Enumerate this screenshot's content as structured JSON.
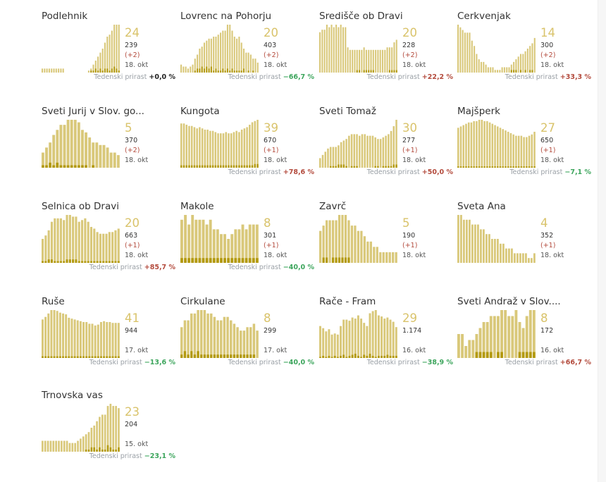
{
  "colors": {
    "bar": "#d9c87a",
    "bar_dark": "#b39a11",
    "growth_neg": "#3ca55c",
    "growth_pos": "#b34a3c"
  },
  "growth_label": "Tedenski prirast",
  "chart_data": [
    {
      "type": "bar",
      "name": "Podlehnik",
      "active": "24",
      "total": "239",
      "delta": "(+2)",
      "date": "18. okt",
      "growth": "+0,0 %",
      "growth_sign": "zero",
      "values": [
        2,
        2,
        2,
        2,
        2,
        2,
        2,
        2,
        2,
        2,
        0,
        0,
        0,
        0,
        0,
        0,
        0,
        0,
        0,
        0,
        1,
        2,
        4,
        6,
        8,
        10,
        12,
        15,
        18,
        19,
        21,
        24,
        24,
        24
      ],
      "dark": [
        0,
        0,
        0,
        0,
        0,
        0,
        0,
        0,
        0,
        0,
        0,
        0,
        0,
        0,
        0,
        0,
        0,
        0,
        0,
        0,
        0,
        1,
        1,
        2,
        1,
        2,
        1,
        2,
        2,
        1,
        2,
        3,
        2,
        1
      ]
    },
    {
      "type": "bar",
      "name": "Lovrenc na Pohorju",
      "active": "20",
      "total": "403",
      "delta": "(+2)",
      "date": "18. okt",
      "growth": "−66,7 %",
      "growth_sign": "neg",
      "values": [
        4,
        3,
        3,
        2,
        3,
        4,
        7,
        9,
        12,
        13,
        15,
        16,
        17,
        17,
        18,
        18,
        19,
        20,
        21,
        21,
        24,
        24,
        21,
        18,
        17,
        18,
        15,
        12,
        10,
        10,
        9,
        7,
        7,
        5
      ],
      "dark": [
        0,
        0,
        0,
        0,
        0,
        0,
        1,
        2,
        2,
        3,
        2,
        3,
        2,
        3,
        1,
        2,
        1,
        1,
        2,
        1,
        2,
        1,
        2,
        1,
        1,
        1,
        1,
        2,
        0,
        1,
        0,
        1,
        0,
        0
      ]
    },
    {
      "type": "bar",
      "name": "Središče ob Dravi",
      "active": "20",
      "total": "228",
      "delta": "(+2)",
      "date": "18. okt",
      "growth": "+22,2 %",
      "growth_sign": "pos",
      "values": [
        16,
        17,
        17,
        19,
        18,
        19,
        18,
        19,
        18,
        19,
        18,
        18,
        10,
        9,
        9,
        9,
        9,
        9,
        9,
        10,
        9,
        9,
        9,
        9,
        9,
        9,
        9,
        9,
        9,
        10,
        10,
        10,
        12,
        13
      ],
      "dark": [
        0,
        0,
        0,
        0,
        0,
        0,
        0,
        0,
        0,
        0,
        0,
        0,
        0,
        0,
        0,
        0,
        1,
        1,
        0,
        1,
        1,
        1,
        1,
        1,
        0,
        0,
        0,
        0,
        0,
        0,
        1,
        1,
        1,
        1
      ]
    },
    {
      "type": "bar",
      "name": "Cerkvenjak",
      "active": "14",
      "total": "300",
      "delta": "(+2)",
      "date": "18. okt",
      "growth": "+33,3 %",
      "growth_sign": "pos",
      "values": [
        18,
        17,
        16,
        15,
        15,
        15,
        12,
        10,
        7,
        5,
        4,
        4,
        3,
        2,
        2,
        2,
        1,
        1,
        1,
        2,
        2,
        2,
        2,
        3,
        4,
        5,
        6,
        7,
        7,
        8,
        9,
        10,
        11,
        13
      ],
      "dark": [
        0,
        0,
        0,
        0,
        0,
        0,
        0,
        0,
        0,
        0,
        0,
        0,
        0,
        0,
        0,
        0,
        0,
        0,
        0,
        0,
        0,
        0,
        0,
        1,
        1,
        1,
        0,
        1,
        0,
        1,
        0,
        1,
        1,
        0
      ]
    },
    {
      "type": "bar",
      "name": "Sveti Jurij v Slov. go...",
      "active": "5",
      "total": "370",
      "delta": "(+2)",
      "date": "18. okt",
      "growth": "",
      "growth_sign": "none",
      "values": [
        6,
        8,
        10,
        13,
        15,
        17,
        17,
        19,
        19,
        19,
        18,
        15,
        14,
        12,
        10,
        10,
        9,
        9,
        8,
        6,
        6,
        5
      ],
      "dark": [
        1,
        1,
        2,
        1,
        2,
        1,
        1,
        1,
        1,
        1,
        1,
        1,
        1,
        0,
        1,
        0,
        0,
        0,
        0,
        0,
        0,
        0
      ]
    },
    {
      "type": "bar",
      "name": "Kungota",
      "active": "39",
      "total": "670",
      "delta": "(+1)",
      "date": "18. okt",
      "growth": "+78,6 %",
      "growth_sign": "pos",
      "values": [
        36,
        36,
        35,
        34,
        34,
        33,
        32,
        33,
        32,
        31,
        31,
        30,
        30,
        29,
        28,
        28,
        28,
        29,
        28,
        28,
        29,
        30,
        29,
        31,
        32,
        33,
        35,
        37,
        38,
        39
      ],
      "dark": [
        2,
        2,
        2,
        2,
        2,
        2,
        2,
        2,
        2,
        2,
        2,
        2,
        2,
        2,
        2,
        2,
        2,
        2,
        2,
        2,
        2,
        2,
        2,
        2,
        2,
        2,
        2,
        2,
        3,
        3
      ]
    },
    {
      "type": "bar",
      "name": "Sveti Tomaž",
      "active": "30",
      "total": "277",
      "delta": "(+1)",
      "date": "18. okt",
      "growth": "+50,0 %",
      "growth_sign": "pos",
      "values": [
        6,
        8,
        10,
        12,
        13,
        13,
        13,
        14,
        16,
        17,
        18,
        20,
        21,
        21,
        21,
        20,
        21,
        21,
        20,
        20,
        20,
        19,
        18,
        18,
        19,
        20,
        21,
        23,
        26,
        30
      ],
      "dark": [
        0,
        0,
        0,
        0,
        1,
        1,
        1,
        2,
        2,
        2,
        1,
        0,
        1,
        1,
        1,
        0,
        0,
        0,
        0,
        0,
        0,
        1,
        1,
        0,
        1,
        1,
        1,
        1,
        2,
        2
      ]
    },
    {
      "type": "bar",
      "name": "Majšperk",
      "active": "27",
      "total": "650",
      "delta": "(+1)",
      "date": "18. okt",
      "growth": "−7,1 %",
      "growth_sign": "neg",
      "values": [
        30,
        31,
        32,
        33,
        34,
        34,
        35,
        35,
        36,
        36,
        35,
        35,
        34,
        33,
        32,
        31,
        30,
        29,
        28,
        27,
        26,
        25,
        24,
        24,
        24,
        23,
        23,
        24,
        25,
        27
      ],
      "dark": [
        1,
        1,
        1,
        1,
        1,
        1,
        1,
        1,
        1,
        1,
        1,
        1,
        1,
        1,
        1,
        1,
        1,
        1,
        1,
        1,
        1,
        1,
        1,
        1,
        1,
        1,
        1,
        1,
        1,
        1
      ]
    },
    {
      "type": "bar",
      "name": "Selnica ob Dravi",
      "active": "20",
      "total": "663",
      "delta": "(+1)",
      "date": "18. okt",
      "growth": "+85,7 %",
      "growth_sign": "pos",
      "values": [
        14,
        16,
        19,
        24,
        26,
        26,
        26,
        25,
        28,
        28,
        27,
        27,
        24,
        25,
        26,
        24,
        21,
        20,
        18,
        17,
        17,
        17,
        18,
        18,
        19,
        20
      ],
      "dark": [
        1,
        1,
        2,
        2,
        1,
        1,
        1,
        1,
        2,
        2,
        2,
        2,
        1,
        1,
        1,
        1,
        1,
        1,
        1,
        1,
        1,
        1,
        1,
        1,
        1,
        1
      ]
    },
    {
      "type": "bar",
      "name": "Makole",
      "active": "8",
      "total": "301",
      "delta": "(+1)",
      "date": "18. okt",
      "growth": "−40,0 %",
      "growth_sign": "neg",
      "values": [
        9,
        10,
        8,
        10,
        9,
        9,
        9,
        8,
        9,
        7,
        7,
        6,
        6,
        5,
        6,
        7,
        7,
        8,
        7,
        8,
        8,
        8
      ],
      "dark": [
        1,
        1,
        1,
        1,
        1,
        1,
        1,
        1,
        1,
        1,
        1,
        1,
        1,
        1,
        1,
        1,
        1,
        1,
        1,
        1,
        1,
        1
      ]
    },
    {
      "type": "bar",
      "name": "Zavrč",
      "active": "5",
      "total": "190",
      "delta": "(+1)",
      "date": "18. okt",
      "growth": "",
      "growth_sign": "none",
      "values": [
        6,
        7,
        8,
        8,
        8,
        8,
        9,
        9,
        9,
        8,
        7,
        7,
        6,
        6,
        5,
        4,
        4,
        3,
        3,
        2,
        2,
        2,
        2,
        2,
        2
      ],
      "dark": [
        0,
        1,
        1,
        0,
        1,
        1,
        1,
        1,
        1,
        1,
        0,
        0,
        0,
        0,
        0,
        0,
        0,
        0,
        0,
        0,
        0,
        0,
        0,
        0,
        0
      ]
    },
    {
      "type": "bar",
      "name": "Sveta Ana",
      "active": "4",
      "total": "352",
      "delta": "(+1)",
      "date": "18. okt",
      "growth": "",
      "growth_sign": "none",
      "values": [
        10,
        10,
        9,
        9,
        9,
        8,
        8,
        8,
        7,
        7,
        6,
        6,
        5,
        5,
        5,
        4,
        4,
        3,
        3,
        3,
        2,
        2,
        2,
        2,
        2,
        1,
        1,
        2
      ],
      "dark": [
        0,
        0,
        0,
        0,
        0,
        0,
        0,
        0,
        0,
        0,
        0,
        0,
        0,
        0,
        0,
        0,
        0,
        0,
        0,
        0,
        0,
        0,
        0,
        0,
        0,
        0,
        0,
        0
      ]
    },
    {
      "type": "bar",
      "name": "Ruše",
      "active": "41",
      "total": "944",
      "delta": "",
      "date": "17. okt",
      "growth": "−13,6 %",
      "growth_sign": "neg",
      "values": [
        45,
        48,
        52,
        56,
        56,
        55,
        53,
        52,
        51,
        47,
        46,
        45,
        44,
        43,
        42,
        42,
        40,
        40,
        38,
        39,
        42,
        43,
        42,
        42,
        41,
        41,
        41
      ],
      "dark": [
        2,
        2,
        2,
        2,
        2,
        2,
        2,
        2,
        2,
        2,
        2,
        2,
        2,
        2,
        2,
        2,
        2,
        2,
        2,
        2,
        2,
        2,
        2,
        2,
        2,
        2,
        2
      ]
    },
    {
      "type": "bar",
      "name": "Cirkulane",
      "active": "8",
      "total": "299",
      "delta": "",
      "date": "17. okt",
      "growth": "−40,0 %",
      "growth_sign": "neg",
      "values": [
        9,
        11,
        11,
        13,
        13,
        14,
        14,
        14,
        13,
        13,
        12,
        11,
        11,
        12,
        12,
        11,
        10,
        9,
        8,
        8,
        9,
        9,
        10,
        8
      ],
      "dark": [
        1,
        2,
        1,
        2,
        1,
        2,
        1,
        1,
        1,
        1,
        1,
        1,
        1,
        1,
        1,
        1,
        1,
        1,
        1,
        1,
        1,
        1,
        1,
        0
      ]
    },
    {
      "type": "bar",
      "name": "Rače - Fram",
      "active": "29",
      "total": "1.174",
      "delta": "",
      "date": "16. okt",
      "growth": "−38,9 %",
      "growth_sign": "neg",
      "values": [
        30,
        28,
        25,
        27,
        22,
        23,
        22,
        30,
        36,
        36,
        35,
        38,
        37,
        40,
        37,
        33,
        30,
        42,
        44,
        45,
        40,
        39,
        37,
        38,
        36,
        34,
        29
      ],
      "dark": [
        1,
        2,
        1,
        2,
        1,
        2,
        1,
        2,
        3,
        1,
        2,
        3,
        4,
        2,
        1,
        3,
        2,
        4,
        2,
        1,
        2,
        2,
        2,
        3,
        2,
        2,
        2
      ]
    },
    {
      "type": "bar",
      "name": "Sveti Andraž v Slov....",
      "active": "8",
      "total": "172",
      "delta": "",
      "date": "16. okt",
      "growth": "+66,7 %",
      "growth_sign": "pos",
      "values": [
        4,
        4,
        2,
        3,
        3,
        4,
        5,
        6,
        6,
        7,
        7,
        7,
        8,
        8,
        7,
        7,
        8,
        6,
        5,
        7,
        8,
        8
      ],
      "dark": [
        0,
        0,
        0,
        0,
        0,
        1,
        1,
        1,
        1,
        1,
        0,
        1,
        1,
        0,
        0,
        0,
        0,
        1,
        1,
        1,
        1,
        1
      ]
    },
    {
      "type": "bar",
      "name": "Trnovska vas",
      "active": "23",
      "total": "204",
      "delta": "",
      "date": "15. okt",
      "growth": "−23,1 %",
      "growth_sign": "neg",
      "values": [
        5,
        5,
        5,
        5,
        5,
        5,
        5,
        5,
        5,
        5,
        4,
        4,
        4,
        5,
        6,
        7,
        8,
        9,
        11,
        12,
        14,
        16,
        17,
        17,
        21,
        22,
        21,
        21,
        20
      ],
      "dark": [
        0,
        0,
        0,
        0,
        0,
        0,
        0,
        0,
        0,
        0,
        0,
        0,
        0,
        0,
        0,
        0,
        1,
        1,
        2,
        2,
        1,
        2,
        1,
        1,
        3,
        2,
        1,
        1,
        2
      ]
    }
  ]
}
